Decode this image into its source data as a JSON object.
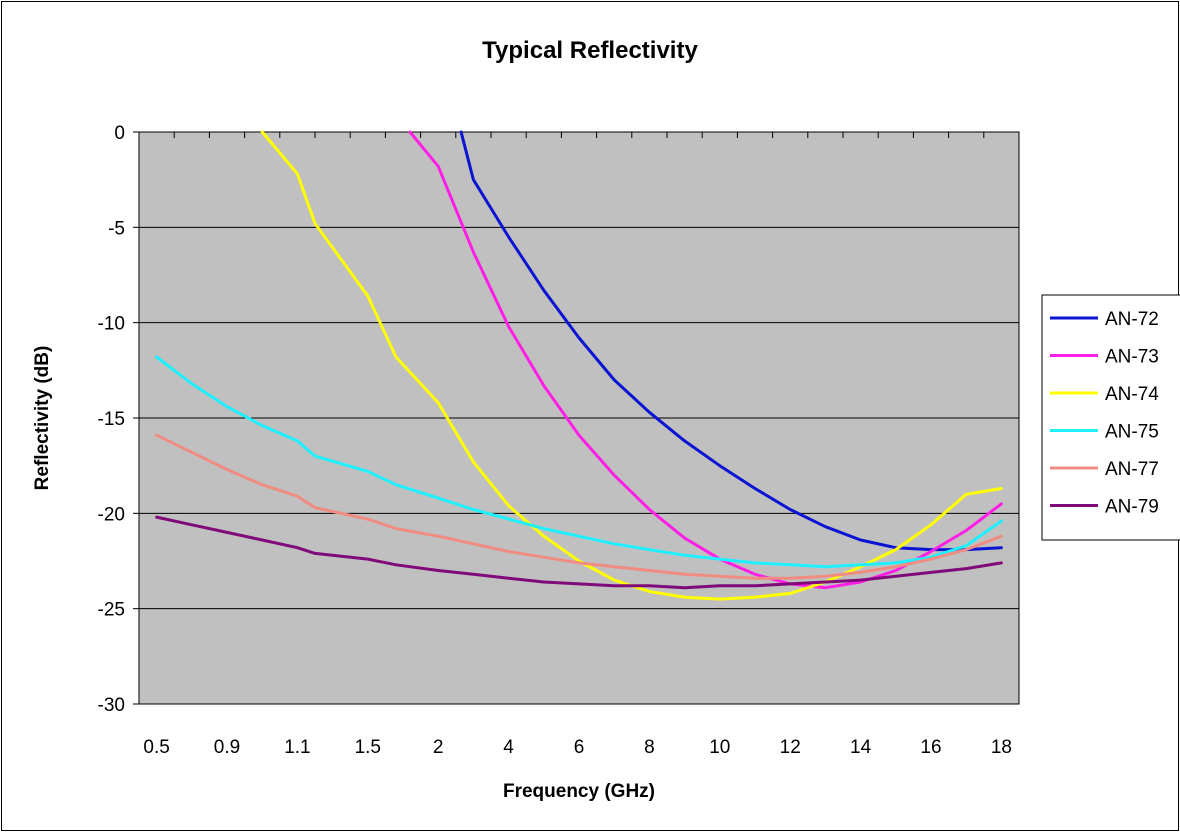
{
  "chart_data": {
    "type": "line",
    "title": "Typical Reflectivity",
    "xlabel": "Frequency (GHz)",
    "ylabel": "Reflectivity (dB)",
    "ylim": [
      -30,
      0
    ],
    "yticks": [
      0,
      -5,
      -10,
      -15,
      -20,
      -25,
      -30
    ],
    "x_tick_labels": [
      "0.5",
      "0.9",
      "1.1",
      "1.5",
      "2",
      "4",
      "6",
      "8",
      "10",
      "12",
      "14",
      "16",
      "18"
    ],
    "x_axis_note": "category axis, labels every 2nd of 25 categories",
    "grid": "horizontal",
    "legend_position": "right",
    "plot_background": "#c0c0c0",
    "series": [
      {
        "name": "AN-72",
        "color": "#0a14d2",
        "x": [
          2.65,
          3.0,
          4.0,
          5.0,
          6.0,
          7.0,
          8.0,
          9.0,
          10.0,
          11.0,
          12.0,
          13.0,
          14.0,
          15.0,
          16.0,
          17.0,
          18.0
        ],
        "y": [
          0,
          -2.5,
          -5.5,
          -8.3,
          -10.8,
          -13.0,
          -14.7,
          -16.2,
          -17.5,
          -18.7,
          -19.8,
          -20.7,
          -21.4,
          -21.8,
          -21.9,
          -21.9,
          -21.8
        ]
      },
      {
        "name": "AN-73",
        "color": "#ff1ee6",
        "x": [
          1.8,
          2.0,
          3.0,
          4.0,
          5.0,
          6.0,
          7.0,
          8.0,
          9.0,
          10.0,
          11.0,
          12.0,
          13.0,
          14.0,
          15.0,
          16.0,
          17.0,
          18.0
        ],
        "y": [
          0,
          -1.8,
          -6.3,
          -10.2,
          -13.3,
          -15.9,
          -18.0,
          -19.8,
          -21.3,
          -22.4,
          -23.2,
          -23.7,
          -23.9,
          -23.6,
          -23.0,
          -22.0,
          -20.9,
          -19.5
        ]
      },
      {
        "name": "AN-74",
        "color": "#ffff00",
        "x": [
          1.0,
          1.1,
          1.2,
          1.5,
          1.7,
          2.0,
          3.0,
          4.0,
          5.0,
          6.0,
          7.0,
          8.0,
          9.0,
          10.0,
          11.0,
          12.0,
          13.0,
          14.0,
          15.0,
          16.0,
          17.0,
          18.0
        ],
        "y": [
          0,
          -2.2,
          -4.8,
          -8.6,
          -11.8,
          -14.2,
          -17.3,
          -19.6,
          -21.2,
          -22.5,
          -23.5,
          -24.1,
          -24.4,
          -24.5,
          -24.4,
          -24.2,
          -23.6,
          -22.8,
          -21.9,
          -20.6,
          -19.0,
          -18.7
        ]
      },
      {
        "name": "AN-75",
        "color": "#1ef0ff",
        "x": [
          0.5,
          0.7,
          0.9,
          1.0,
          1.1,
          1.2,
          1.5,
          1.7,
          2.0,
          3.0,
          4.0,
          5.0,
          6.0,
          7.0,
          8.0,
          9.0,
          10.0,
          11.0,
          12.0,
          13.0,
          14.0,
          15.0,
          16.0,
          17.0,
          18.0
        ],
        "y": [
          -11.8,
          -13.2,
          -14.4,
          -15.4,
          -16.2,
          -17.0,
          -17.8,
          -18.5,
          -19.2,
          -19.8,
          -20.3,
          -20.8,
          -21.2,
          -21.6,
          -21.9,
          -22.2,
          -22.4,
          -22.6,
          -22.7,
          -22.8,
          -22.7,
          -22.6,
          -22.3,
          -21.7,
          -20.4
        ]
      },
      {
        "name": "AN-77",
        "color": "#f08c82",
        "x": [
          0.5,
          0.7,
          0.9,
          1.0,
          1.1,
          1.2,
          1.5,
          1.7,
          2.0,
          3.0,
          4.0,
          5.0,
          6.0,
          7.0,
          8.0,
          9.0,
          10.0,
          11.0,
          12.0,
          13.0,
          14.0,
          15.0,
          16.0,
          17.0,
          18.0
        ],
        "y": [
          -15.9,
          -16.8,
          -17.7,
          -18.5,
          -19.1,
          -19.7,
          -20.3,
          -20.8,
          -21.2,
          -21.6,
          -22.0,
          -22.3,
          -22.6,
          -22.8,
          -23.0,
          -23.2,
          -23.3,
          -23.4,
          -23.4,
          -23.3,
          -23.1,
          -22.8,
          -22.4,
          -21.9,
          -21.2
        ]
      },
      {
        "name": "AN-79",
        "color": "#800a7a",
        "x": [
          0.5,
          0.7,
          0.9,
          1.0,
          1.1,
          1.2,
          1.5,
          1.7,
          2.0,
          3.0,
          4.0,
          5.0,
          6.0,
          7.0,
          8.0,
          9.0,
          10.0,
          11.0,
          12.0,
          13.0,
          14.0,
          15.0,
          16.0,
          17.0,
          18.0
        ],
        "y": [
          -20.2,
          -20.6,
          -21.0,
          -21.4,
          -21.8,
          -22.1,
          -22.4,
          -22.7,
          -23.0,
          -23.2,
          -23.4,
          -23.6,
          -23.7,
          -23.8,
          -23.8,
          -23.9,
          -23.8,
          -23.8,
          -23.7,
          -23.6,
          -23.5,
          -23.3,
          -23.1,
          -22.9,
          -22.6
        ]
      }
    ]
  }
}
